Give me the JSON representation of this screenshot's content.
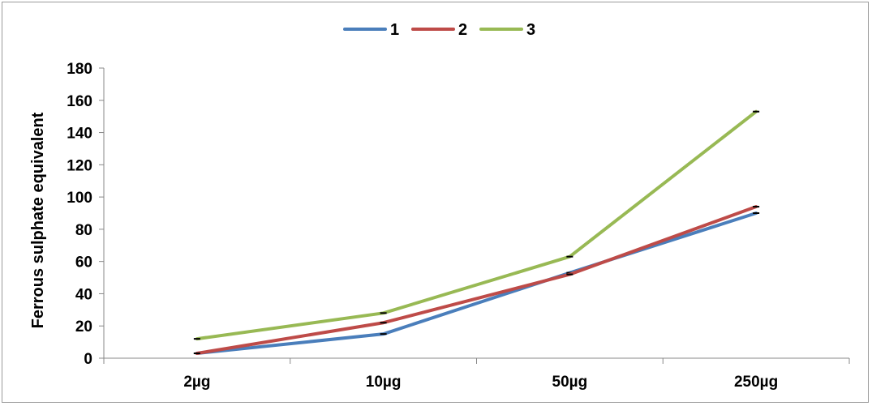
{
  "chart_data": {
    "type": "line",
    "title": "",
    "xlabel": "",
    "ylabel": "Ferrous sulphate equivalent",
    "categories": [
      "2µg",
      "10µg",
      "50µg",
      "250µg"
    ],
    "ylim": [
      0,
      180
    ],
    "yticks": [
      0,
      20,
      40,
      60,
      80,
      100,
      120,
      140,
      160,
      180
    ],
    "grid": false,
    "legend_position": "top-center",
    "series": [
      {
        "name": "1",
        "color": "#4A7EBB",
        "values": [
          3,
          15,
          53,
          90
        ]
      },
      {
        "name": "2",
        "color": "#BE4B48",
        "values": [
          3,
          22,
          52,
          94
        ]
      },
      {
        "name": "3",
        "color": "#98B954",
        "values": [
          12,
          28,
          63,
          153
        ]
      }
    ]
  }
}
